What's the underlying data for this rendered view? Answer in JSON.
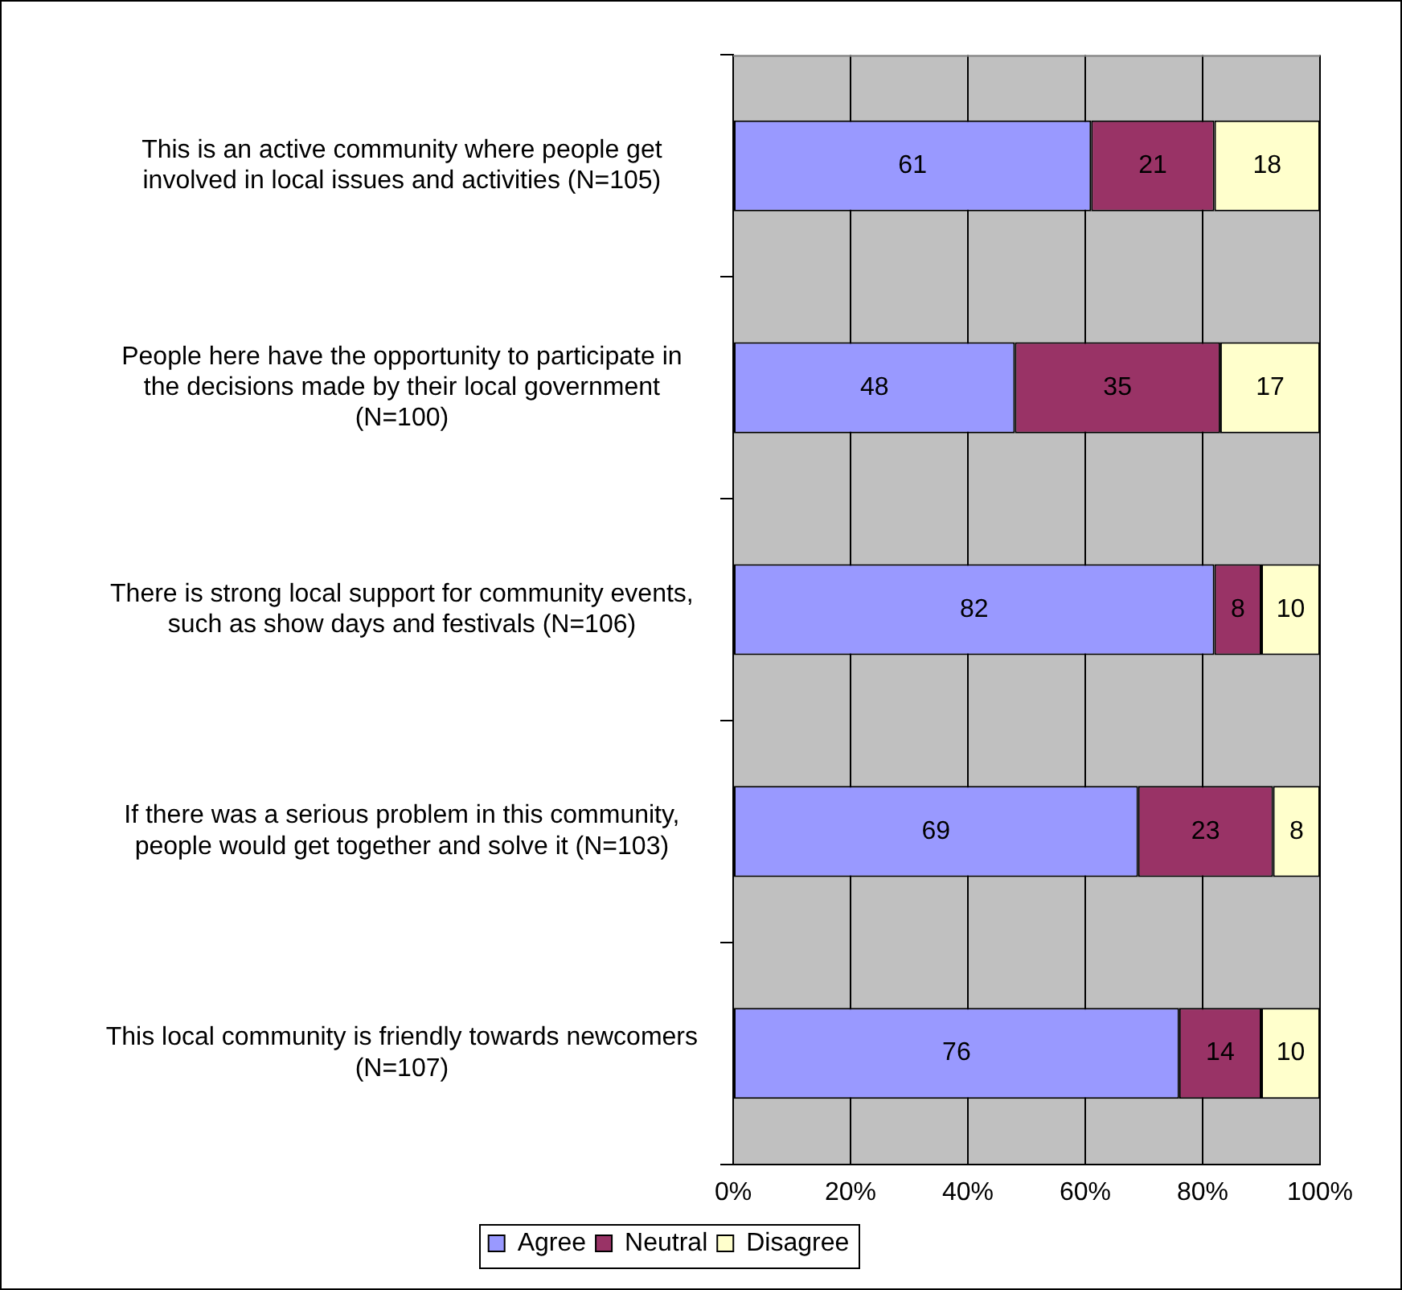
{
  "chart_data": {
    "type": "bar",
    "orientation": "horizontal",
    "stacked": true,
    "categories": [
      "This is an active community where people get involved in local issues and activities (N=105)",
      "People here have the opportunity to participate in the decisions made by their local government (N=100)",
      "There is strong local support for community events, such as show days and festivals (N=106)",
      "If there was a serious problem in this community, people would get together and solve it (N=103)",
      "This local community is friendly towards newcomers (N=107)"
    ],
    "series": [
      {
        "name": "Agree",
        "color": "#9999ff",
        "values": [
          61,
          48,
          82,
          69,
          76
        ]
      },
      {
        "name": "Neutral",
        "color": "#993366",
        "values": [
          21,
          35,
          8,
          23,
          14
        ]
      },
      {
        "name": "Disagree",
        "color": "#ffffcc",
        "values": [
          18,
          17,
          10,
          8,
          10
        ]
      }
    ],
    "xlim": [
      0,
      100
    ],
    "xticks": [
      {
        "value": 0,
        "label": "0%"
      },
      {
        "value": 20,
        "label": "20%"
      },
      {
        "value": 40,
        "label": "40%"
      },
      {
        "value": 60,
        "label": "60%"
      },
      {
        "value": 80,
        "label": "80%"
      },
      {
        "value": 100,
        "label": "100%"
      }
    ],
    "grid": "x",
    "legend": "bottom",
    "data_labels": true
  }
}
